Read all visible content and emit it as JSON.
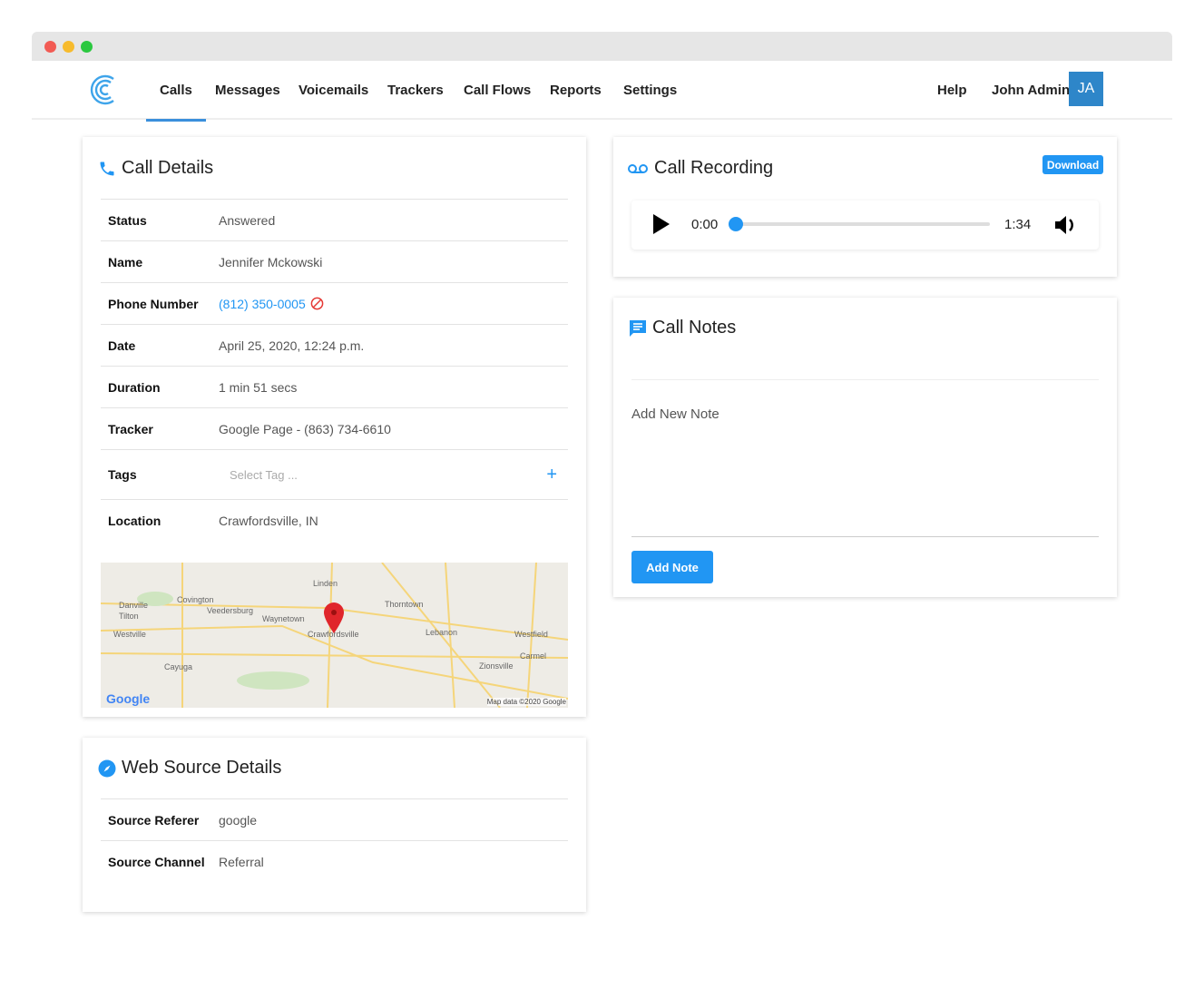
{
  "nav": {
    "items": [
      "Calls",
      "Messages",
      "Voicemails",
      "Trackers",
      "Call Flows",
      "Reports",
      "Settings"
    ],
    "active": "Calls",
    "help": "Help",
    "user": "John Admin",
    "avatar": "JA"
  },
  "call_details": {
    "title": "Call Details",
    "rows": [
      {
        "label": "Status",
        "value": "Answered"
      },
      {
        "label": "Name",
        "value": "Jennifer Mckowski"
      },
      {
        "label": "Phone Number",
        "value": "(812) 350-0005"
      },
      {
        "label": "Date",
        "value": "April 25, 2020, 12:24 p.m."
      },
      {
        "label": "Duration",
        "value": "1 min 51 secs"
      },
      {
        "label": "Tracker",
        "value": "Google Page - (863) 734-6610"
      },
      {
        "label": "Tags",
        "value": "Select Tag ..."
      },
      {
        "label": "Location",
        "value": "Crawfordsville, IN"
      }
    ],
    "map": {
      "labels": [
        "Linden",
        "Covington",
        "Danville",
        "Tilton",
        "Veedersburg",
        "Waynetown",
        "Thorntown",
        "Crawfordsville",
        "Lebanon",
        "Westfield",
        "Westville",
        "Carmel",
        "Zionsville",
        "Cayuga"
      ],
      "google": "Google",
      "attribution": "Map data ©2020 Google"
    }
  },
  "recording": {
    "title": "Call Recording",
    "download": "Download",
    "current": "0:00",
    "total": "1:34",
    "progress": 0
  },
  "notes": {
    "title": "Call Notes",
    "placeholder": "Add New Note",
    "button": "Add Note"
  },
  "web_source": {
    "title": "Web Source Details",
    "rows": [
      {
        "label": "Source Referer",
        "value": "google"
      },
      {
        "label": "Source Channel",
        "value": "Referral"
      }
    ]
  },
  "colors": {
    "accent": "#2196f3",
    "nav_active": "#3a8fdc",
    "avatar": "#2e86c9",
    "blocked": "#e53935"
  }
}
